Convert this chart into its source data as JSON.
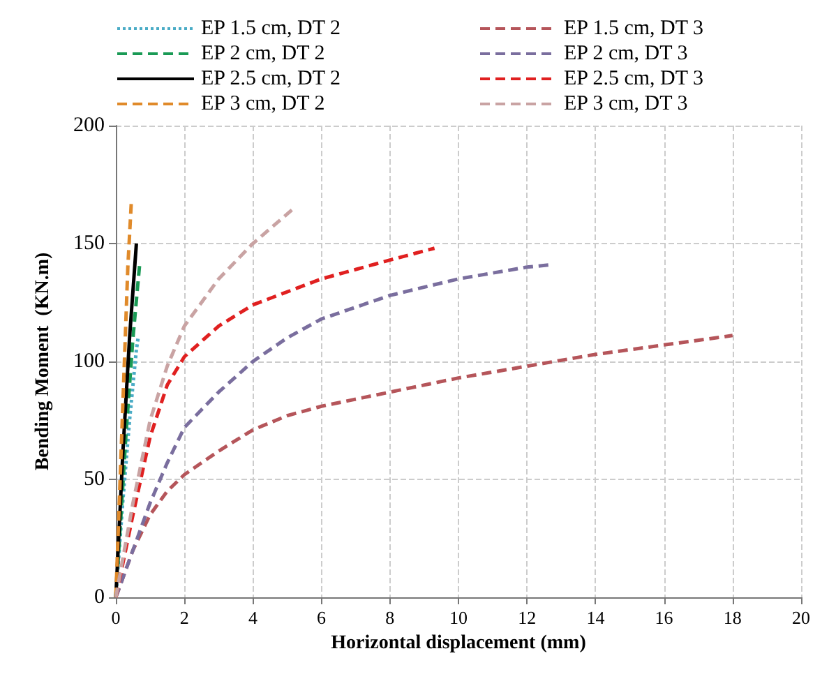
{
  "chart_data": {
    "type": "line",
    "xlabel": "Horizontal displacement (mm)",
    "ylabel": "Bending Moment  (KN.m)",
    "xlim": [
      0,
      20
    ],
    "xticks": [
      0,
      2,
      4,
      6,
      8,
      10,
      12,
      14,
      16,
      18,
      20
    ],
    "ylim": [
      0,
      200
    ],
    "yticks": [
      0,
      50,
      100,
      150,
      200
    ],
    "grid": true,
    "legend": "top",
    "marker": "none",
    "series": [
      {
        "name": "EP 1.5 cm, DT 2",
        "color": "#4bacc6",
        "line_style": "dotted",
        "x": [
          0,
          0.2,
          0.4,
          0.6,
          0.65
        ],
        "values": [
          0,
          40,
          75,
          105,
          110
        ]
      },
      {
        "name": "EP 1.5 cm, DT 3",
        "color": "#b5555a",
        "line_style": "dashed",
        "x": [
          0,
          0.5,
          1,
          1.5,
          2,
          3,
          4,
          5,
          6,
          8,
          10,
          12,
          14,
          16,
          18
        ],
        "values": [
          0,
          20,
          35,
          45,
          52,
          62,
          71,
          77,
          81,
          87,
          93,
          98,
          103,
          107,
          111
        ]
      },
      {
        "name": "EP 2 cm, DT 2",
        "color": "#1a9a55",
        "line_style": "dashed",
        "x": [
          0,
          0.3,
          0.5,
          0.7
        ],
        "values": [
          0,
          70,
          110,
          142
        ]
      },
      {
        "name": "EP 2 cm, DT 3",
        "color": "#7a6e9e",
        "line_style": "dashed",
        "x": [
          0,
          0.5,
          1,
          1.5,
          2,
          3,
          4,
          5,
          6,
          8,
          10,
          12,
          12.7
        ],
        "values": [
          0,
          20,
          40,
          57,
          72,
          87,
          100,
          110,
          118,
          128,
          135,
          140,
          141
        ]
      },
      {
        "name": "EP 2.5 cm, DT 2",
        "color": "#000000",
        "line_style": "solid",
        "x": [
          0,
          0.2,
          0.4,
          0.6
        ],
        "values": [
          0,
          60,
          110,
          150
        ]
      },
      {
        "name": "EP 2.5 cm, DT 3",
        "color": "#e02020",
        "line_style": "dashed",
        "x": [
          0,
          0.5,
          1,
          1.5,
          2,
          3,
          4,
          6,
          8,
          9.3
        ],
        "values": [
          0,
          35,
          68,
          90,
          102,
          115,
          124,
          135,
          143,
          148
        ]
      },
      {
        "name": "EP 3 cm, DT 2",
        "color": "#e08a2a",
        "line_style": "dashed",
        "x": [
          0,
          0.2,
          0.35,
          0.45
        ],
        "values": [
          0,
          80,
          140,
          167
        ]
      },
      {
        "name": "EP 3 cm, DT 3",
        "color": "#c9a3a3",
        "line_style": "dashed",
        "x": [
          0,
          0.5,
          1,
          1.5,
          2,
          3,
          4,
          5.2
        ],
        "values": [
          0,
          40,
          75,
          98,
          115,
          135,
          150,
          165
        ]
      }
    ]
  }
}
